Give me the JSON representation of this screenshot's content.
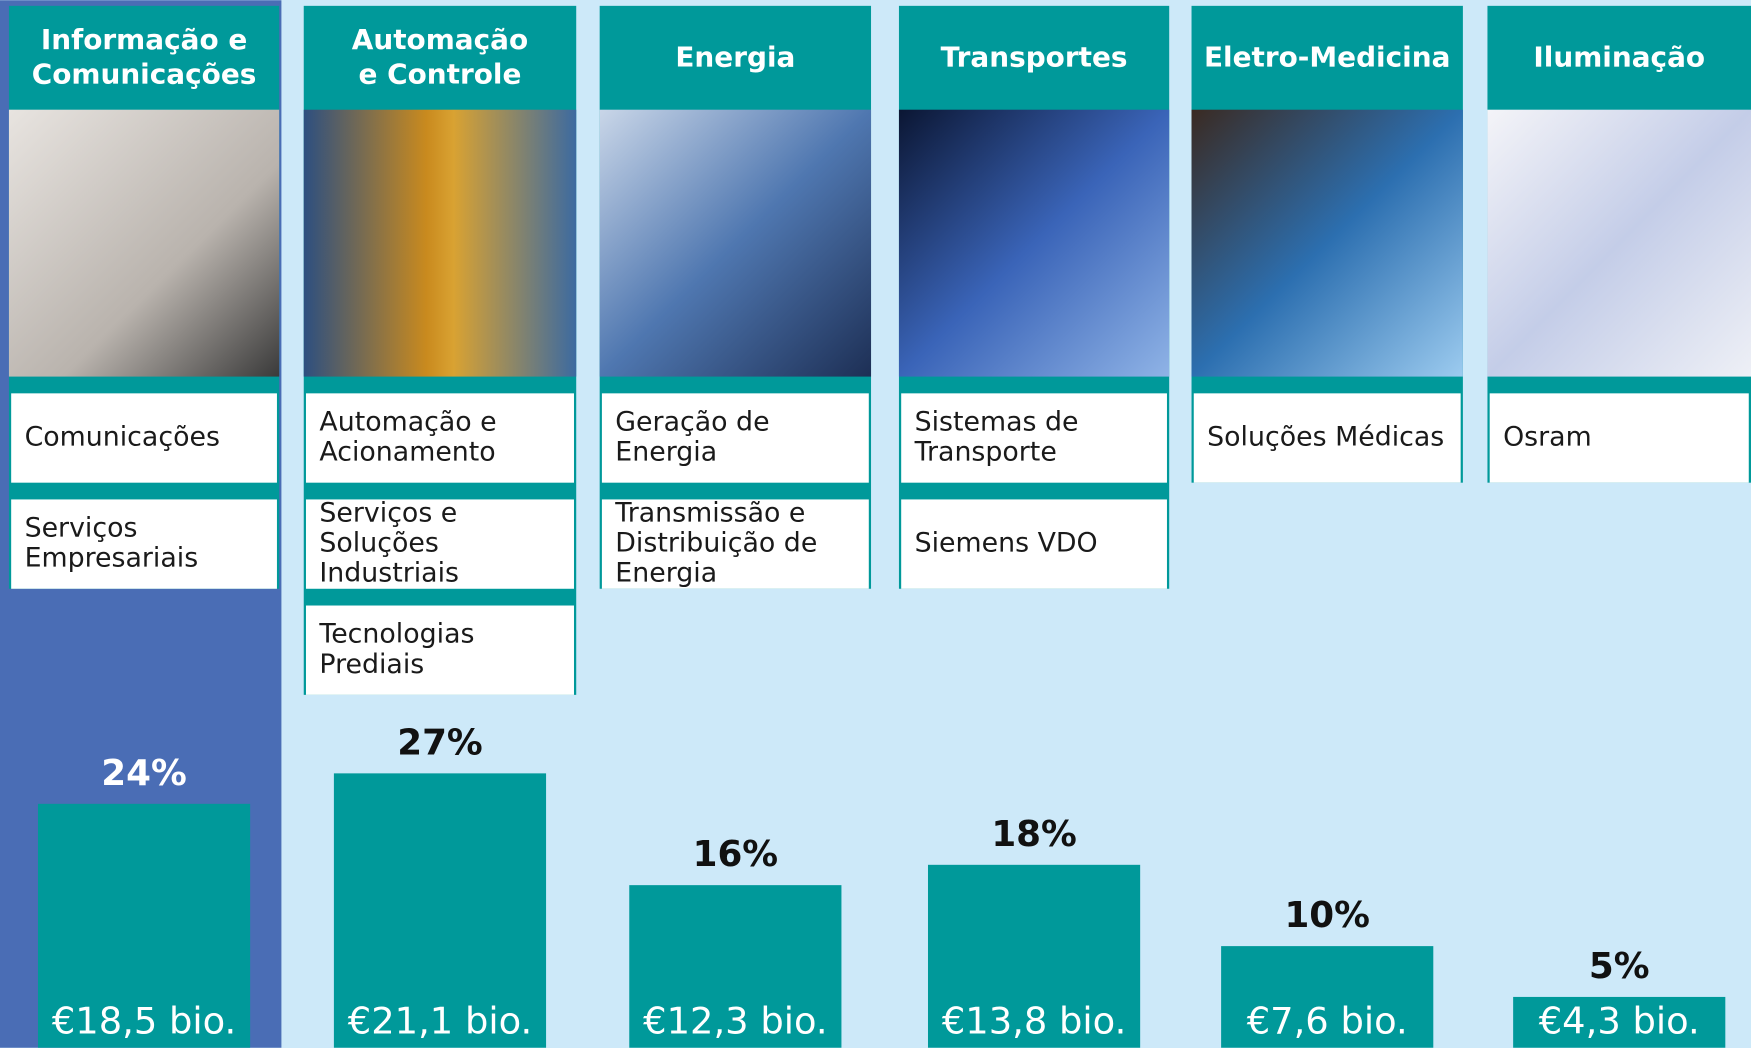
{
  "chart_data": {
    "type": "bar",
    "categories": [
      [
        "Informação e",
        "Comunicações"
      ],
      [
        "Automação",
        "e Controle"
      ],
      [
        "Energia"
      ],
      [
        "Transportes"
      ],
      [
        "Eletro-Medicina"
      ],
      [
        "Iluminação"
      ]
    ],
    "divisions": [
      [
        [
          "Comunicações"
        ],
        [
          "Serviços",
          "Empresariais"
        ]
      ],
      [
        [
          "Automação e",
          "Acionamento"
        ],
        [
          "Serviços e",
          "Soluções",
          "Industriais"
        ],
        [
          "Tecnologias",
          "Prediais"
        ]
      ],
      [
        [
          "Geração de",
          "Energia"
        ],
        [
          "Transmissão e",
          "Distribuição de",
          "Energia"
        ]
      ],
      [
        [
          "Sistemas de",
          "Transporte"
        ],
        [
          "Siemens VDO"
        ]
      ],
      [
        [
          "Soluções Médicas"
        ]
      ],
      [
        [
          "Osram"
        ]
      ]
    ],
    "values": [
      24,
      27,
      16,
      18,
      10,
      5
    ],
    "value_labels": [
      "24%",
      "27%",
      "16%",
      "18%",
      "10%",
      "5%"
    ],
    "revenues": [
      18.5,
      21.1,
      12.3,
      13.8,
      7.6,
      4.3
    ],
    "revenue_labels": [
      "€18,5 bio.",
      "€21,1 bio.",
      "€12,3 bio.",
      "€13,8 bio.",
      "€7,6 bio.",
      "€4,3 bio."
    ],
    "color": "#00999a"
  }
}
